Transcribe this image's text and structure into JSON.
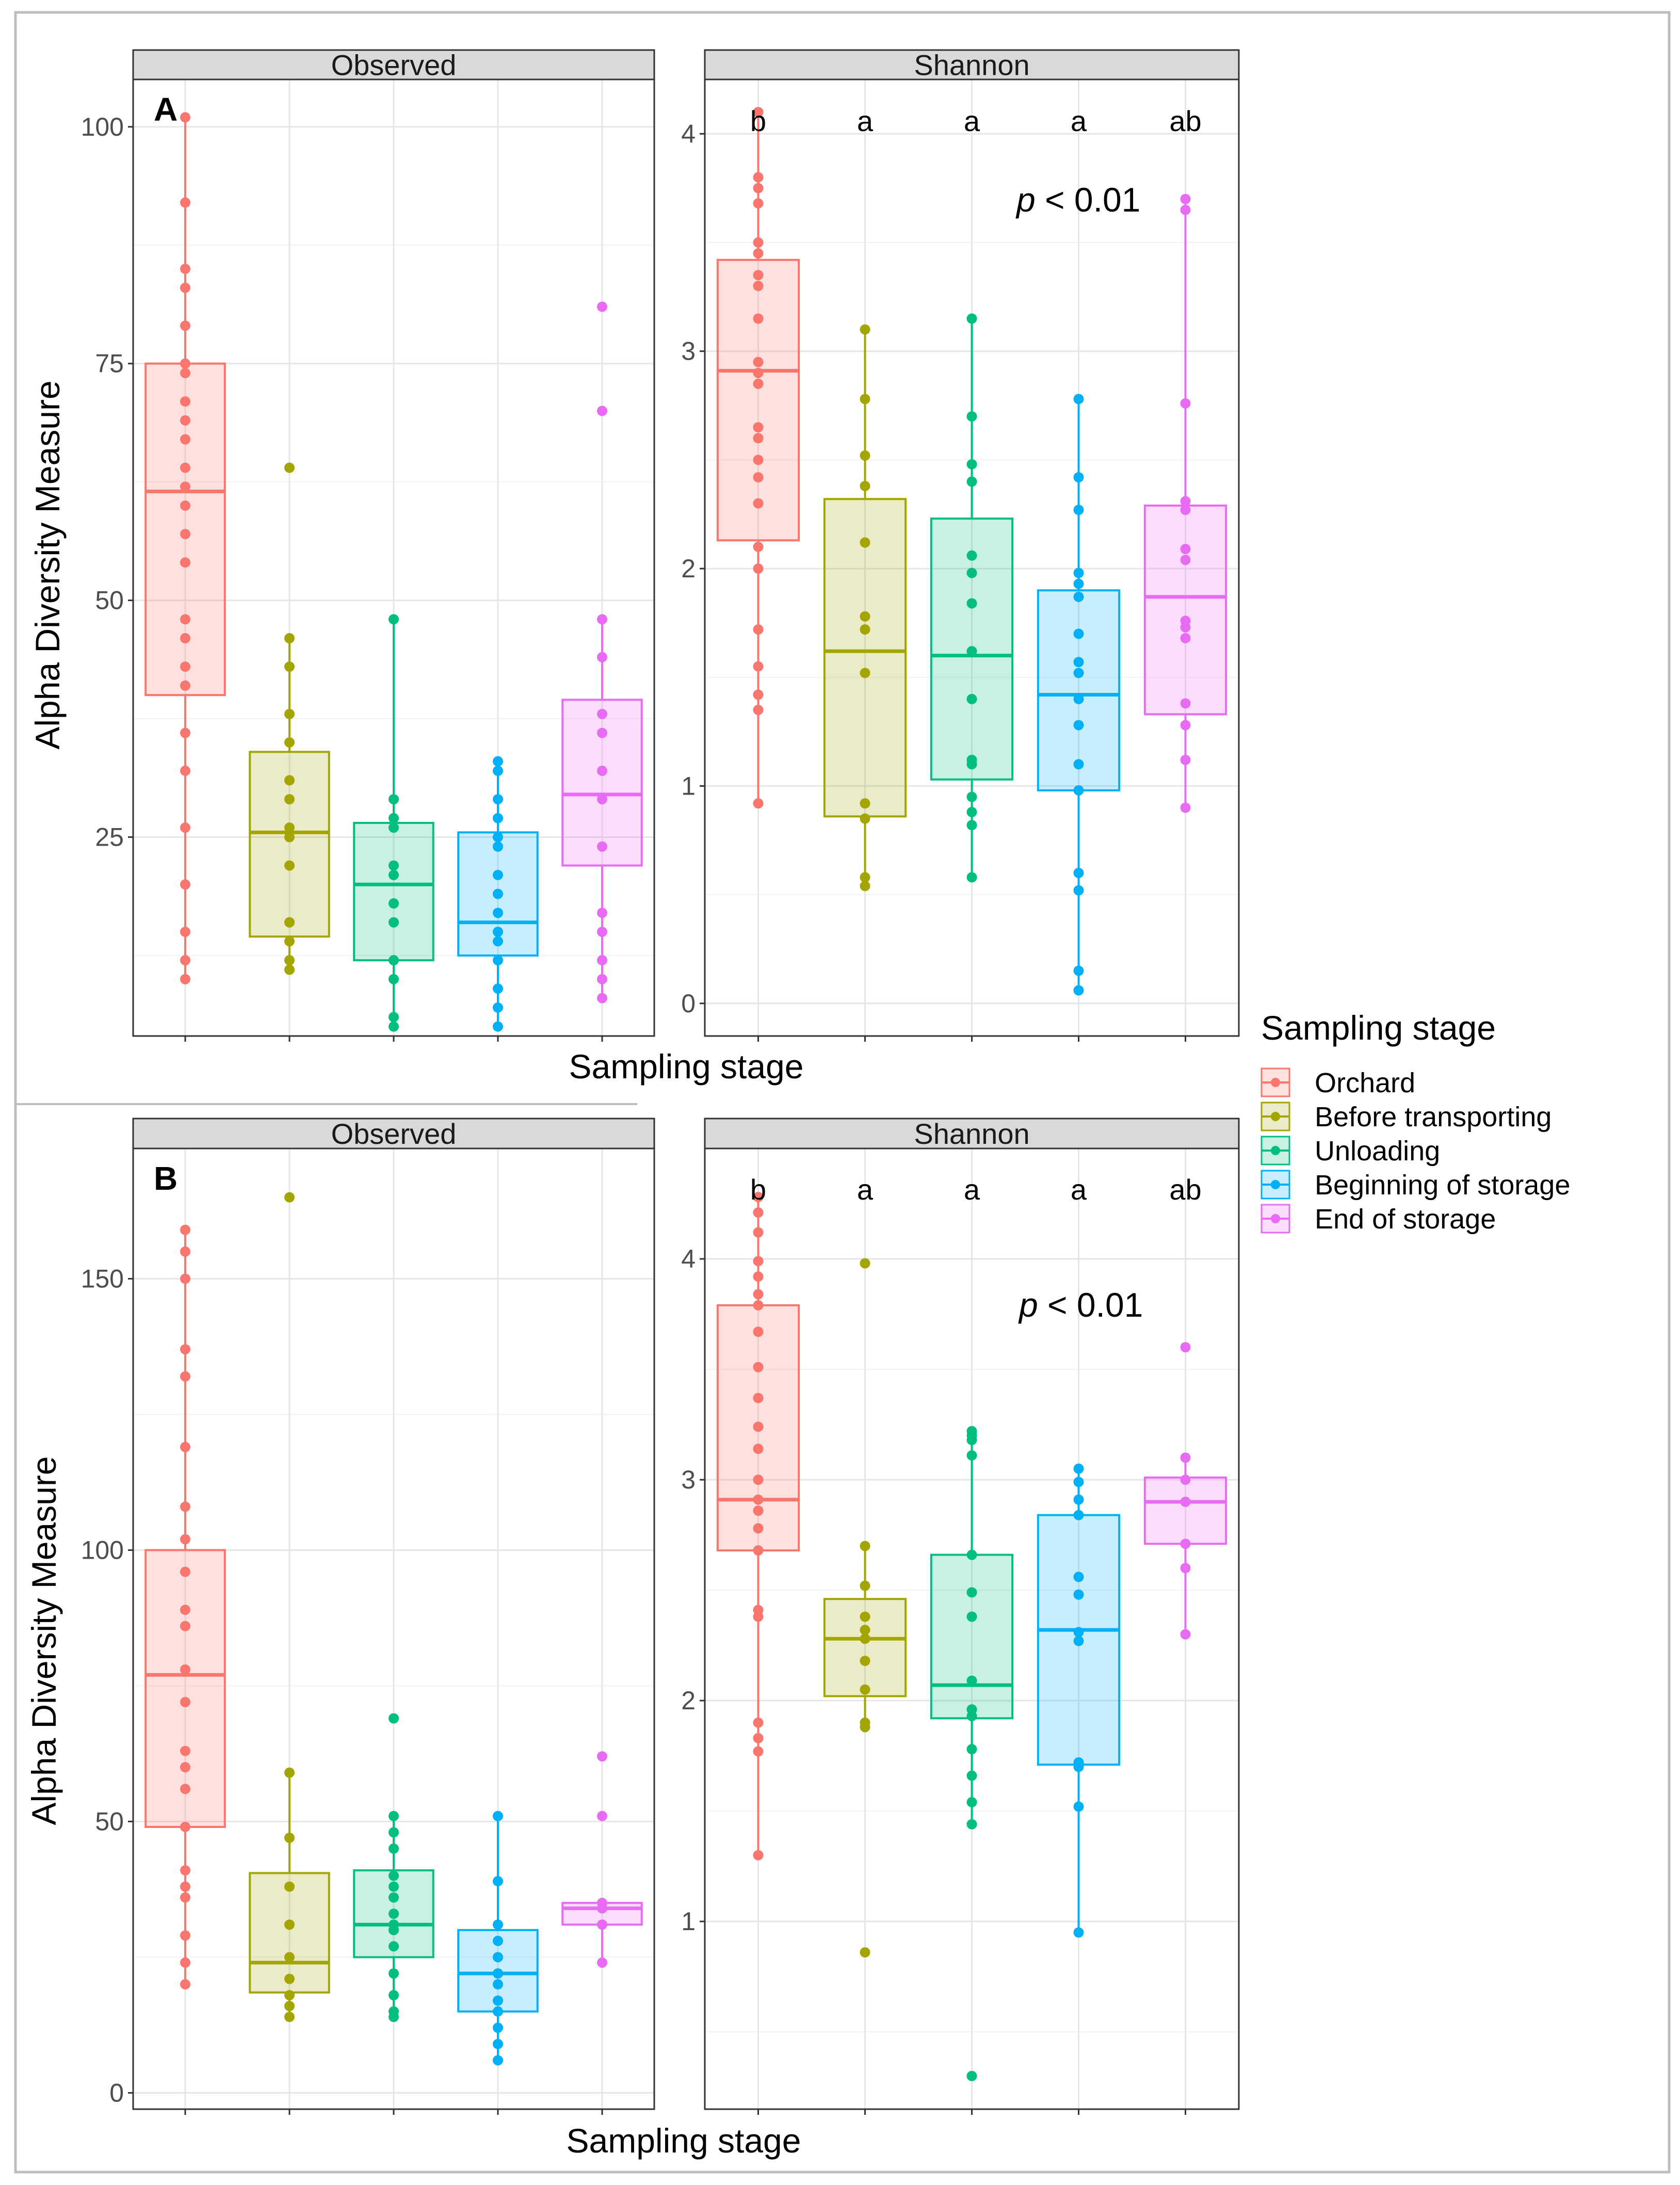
{
  "chart_data": [
    {
      "type": "box",
      "panel_label": "A",
      "facet": "Observed",
      "xlabel": "Sampling stage",
      "ylabel": "Alpha Diversity Measure",
      "ylim": [
        4,
        105
      ],
      "yticks": [
        25,
        50,
        75,
        100
      ],
      "series": [
        {
          "name": "Orchard",
          "box": {
            "q1": 40,
            "median": 61.5,
            "q3": 75,
            "whisker_low": 10,
            "whisker_high": 101
          },
          "points": [
            101,
            92,
            85,
            83,
            79,
            75,
            74,
            71,
            69,
            67,
            64,
            62,
            60,
            57,
            54,
            48,
            46,
            43,
            41,
            36,
            32,
            26,
            20,
            15,
            12,
            10
          ]
        },
        {
          "name": "Before transporting",
          "box": {
            "q1": 14.5,
            "median": 25.5,
            "q3": 34,
            "whisker_low": 11,
            "whisker_high": 46
          },
          "points": [
            64,
            46,
            43,
            38,
            35,
            31,
            29,
            26,
            25,
            22,
            16,
            16,
            14,
            12,
            11
          ]
        },
        {
          "name": "Unloading",
          "box": {
            "q1": 12,
            "median": 20,
            "q3": 26.5,
            "whisker_low": 5,
            "whisker_high": 48
          },
          "points": [
            48,
            29,
            27,
            26,
            22,
            21,
            18,
            16,
            12,
            10,
            6,
            5
          ]
        },
        {
          "name": "Beginning of storage",
          "box": {
            "q1": 12.5,
            "median": 16,
            "q3": 25.5,
            "whisker_low": 5,
            "whisker_high": 33
          },
          "points": [
            33,
            32,
            29,
            27,
            25,
            24,
            21,
            19,
            17,
            15,
            14,
            12,
            9,
            7,
            5
          ]
        },
        {
          "name": "End of storage",
          "box": {
            "q1": 22,
            "median": 29.5,
            "q3": 39.5,
            "whisker_low": 8,
            "whisker_high": 48
          },
          "points": [
            81,
            70,
            48,
            44,
            38,
            36,
            32,
            29,
            24,
            17,
            15,
            12,
            10,
            8
          ]
        }
      ]
    },
    {
      "type": "box",
      "panel_label": "A",
      "facet": "Shannon",
      "ylim": [
        -0.15,
        4.25
      ],
      "yticks": [
        0,
        1,
        2,
        3,
        4
      ],
      "annotation": {
        "italic": "p",
        "rest": " < 0.01"
      },
      "letters": [
        "b",
        "a",
        "a",
        "a",
        "ab"
      ],
      "series": [
        {
          "name": "Orchard",
          "box": {
            "q1": 2.13,
            "median": 2.91,
            "q3": 3.42,
            "whisker_low": 0.92,
            "whisker_high": 4.1
          },
          "points": [
            4.1,
            3.8,
            3.75,
            3.68,
            3.5,
            3.45,
            3.35,
            3.3,
            3.15,
            2.95,
            2.9,
            2.85,
            2.65,
            2.6,
            2.5,
            2.42,
            2.3,
            2.1,
            2.0,
            1.72,
            1.55,
            1.42,
            1.35,
            0.92
          ]
        },
        {
          "name": "Before transporting",
          "box": {
            "q1": 0.86,
            "median": 1.62,
            "q3": 2.32,
            "whisker_low": 0.54,
            "whisker_high": 3.1
          },
          "points": [
            3.1,
            2.78,
            2.52,
            2.38,
            2.12,
            1.78,
            1.72,
            1.52,
            0.92,
            0.85,
            0.58,
            0.54
          ]
        },
        {
          "name": "Unloading",
          "box": {
            "q1": 1.03,
            "median": 1.6,
            "q3": 2.23,
            "whisker_low": 0.58,
            "whisker_high": 3.15
          },
          "points": [
            3.15,
            2.7,
            2.48,
            2.4,
            2.06,
            1.98,
            1.84,
            1.62,
            1.4,
            1.12,
            1.1,
            0.95,
            0.88,
            0.82,
            0.58
          ]
        },
        {
          "name": "Beginning of storage",
          "box": {
            "q1": 0.98,
            "median": 1.42,
            "q3": 1.9,
            "whisker_low": 0.06,
            "whisker_high": 2.78
          },
          "points": [
            2.78,
            2.42,
            2.27,
            1.98,
            1.93,
            1.87,
            1.7,
            1.57,
            1.52,
            1.4,
            1.28,
            1.1,
            0.98,
            0.6,
            0.52,
            0.15,
            0.06
          ]
        },
        {
          "name": "End of storage",
          "box": {
            "q1": 1.33,
            "median": 1.87,
            "q3": 2.29,
            "whisker_low": 0.9,
            "whisker_high": 3.7
          },
          "points": [
            3.7,
            3.65,
            2.76,
            2.31,
            2.27,
            2.09,
            2.04,
            1.76,
            1.73,
            1.68,
            1.38,
            1.28,
            1.12,
            0.9
          ]
        }
      ]
    },
    {
      "type": "box",
      "panel_label": "B",
      "facet": "Observed",
      "xlabel": "Sampling stage",
      "ylabel": "Alpha Diversity Measure",
      "ylim": [
        -3,
        174
      ],
      "yticks": [
        0,
        50,
        100,
        150
      ],
      "series": [
        {
          "name": "Orchard",
          "box": {
            "q1": 49,
            "median": 77,
            "q3": 100,
            "whisker_low": 20,
            "whisker_high": 159
          },
          "points": [
            159,
            155,
            150,
            137,
            132,
            119,
            108,
            102,
            96,
            89,
            86,
            78,
            72,
            63,
            60,
            56,
            49,
            41,
            38,
            36,
            29,
            24,
            20
          ]
        },
        {
          "name": "Before transporting",
          "box": {
            "q1": 18.5,
            "median": 24,
            "q3": 40.5,
            "whisker_low": 14,
            "whisker_high": 59
          },
          "points": [
            165,
            59,
            47,
            38,
            31,
            25,
            21,
            18,
            16,
            14
          ]
        },
        {
          "name": "Unloading",
          "box": {
            "q1": 25,
            "median": 31,
            "q3": 41,
            "whisker_low": 14,
            "whisker_high": 51
          },
          "points": [
            69,
            51,
            48,
            45,
            40,
            38,
            36,
            33,
            31,
            30,
            27,
            22,
            18,
            15,
            14
          ]
        },
        {
          "name": "Beginning of storage",
          "box": {
            "q1": 15,
            "median": 22,
            "q3": 30,
            "whisker_low": 6,
            "whisker_high": 51
          },
          "points": [
            51,
            39,
            31,
            28,
            25,
            22,
            20,
            17,
            15,
            12,
            9,
            6
          ]
        },
        {
          "name": "End of storage",
          "box": {
            "q1": 31,
            "median": 34,
            "q3": 35,
            "whisker_low": 24,
            "whisker_high": 35
          },
          "points": [
            62,
            51,
            35,
            34,
            31,
            24
          ]
        }
      ]
    },
    {
      "type": "box",
      "panel_label": "B",
      "facet": "Shannon",
      "ylim": [
        0.15,
        4.5
      ],
      "yticks": [
        1,
        2,
        3,
        4
      ],
      "annotation": {
        "italic": "p",
        "rest": " < 0.01"
      },
      "letters": [
        "b",
        "a",
        "a",
        "a",
        "ab"
      ],
      "series": [
        {
          "name": "Orchard",
          "box": {
            "q1": 2.68,
            "median": 2.91,
            "q3": 3.79,
            "whisker_low": 1.3,
            "whisker_high": 4.28
          },
          "points": [
            4.28,
            4.21,
            4.12,
            3.99,
            3.92,
            3.84,
            3.79,
            3.67,
            3.51,
            3.37,
            3.24,
            3.14,
            3.0,
            2.91,
            2.86,
            2.78,
            2.68,
            2.41,
            2.38,
            1.9,
            1.83,
            1.77,
            1.3
          ]
        },
        {
          "name": "Before transporting",
          "box": {
            "q1": 2.02,
            "median": 2.28,
            "q3": 2.46,
            "whisker_low": 1.88,
            "whisker_high": 2.7
          },
          "points": [
            3.98,
            2.7,
            2.52,
            2.38,
            2.32,
            2.28,
            2.18,
            2.05,
            1.9,
            1.88,
            0.86
          ]
        },
        {
          "name": "Unloading",
          "box": {
            "q1": 1.92,
            "median": 2.07,
            "q3": 2.66,
            "whisker_low": 1.44,
            "whisker_high": 3.22
          },
          "points": [
            3.22,
            3.2,
            3.18,
            3.11,
            2.66,
            2.49,
            2.38,
            2.09,
            1.96,
            1.93,
            1.78,
            1.66,
            1.54,
            1.44,
            0.3
          ]
        },
        {
          "name": "Beginning of storage",
          "box": {
            "q1": 1.71,
            "median": 2.32,
            "q3": 2.84,
            "whisker_low": 0.95,
            "whisker_high": 3.05
          },
          "points": [
            3.05,
            2.99,
            2.91,
            2.84,
            2.56,
            2.48,
            2.31,
            2.27,
            1.72,
            1.7,
            1.52,
            0.95
          ]
        },
        {
          "name": "End of storage",
          "box": {
            "q1": 2.71,
            "median": 2.9,
            "q3": 3.01,
            "whisker_low": 2.3,
            "whisker_high": 3.1
          },
          "points": [
            3.6,
            3.1,
            3.0,
            2.9,
            2.71,
            2.6,
            2.3
          ]
        }
      ]
    }
  ],
  "legend": {
    "title": "Sampling stage",
    "items": [
      {
        "label": "Orchard",
        "color": "#F8766D"
      },
      {
        "label": "Before transporting",
        "color": "#A3A500"
      },
      {
        "label": "Unloading",
        "color": "#00BF7D"
      },
      {
        "label": "Beginning of storage",
        "color": "#00B0F6"
      },
      {
        "label": "End of storage",
        "color": "#E76BF3"
      }
    ]
  }
}
